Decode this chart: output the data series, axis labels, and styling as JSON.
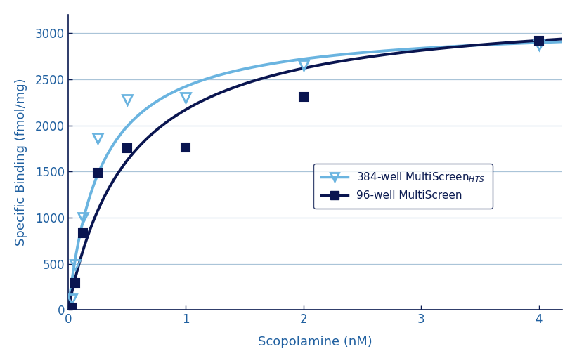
{
  "title": "",
  "xlabel": "Scopolamine (nM)",
  "ylabel": "Specific Binding (fmol/mg)",
  "xlim": [
    0,
    4.2
  ],
  "ylim": [
    0,
    3200
  ],
  "xticks": [
    0,
    1,
    2,
    3,
    4
  ],
  "yticks": [
    0,
    500,
    1000,
    1500,
    2000,
    2500,
    3000
  ],
  "bg_color": "#ffffff",
  "plot_bg_color": "#ffffff",
  "series_384": {
    "label": "384-well MultiScreen$_{HTS}$",
    "color": "#6ab4e0",
    "x_data": [
      0.031,
      0.063,
      0.125,
      0.25,
      0.5,
      1.0,
      2.0,
      4.0
    ],
    "y_data": [
      115,
      490,
      1000,
      1860,
      2280,
      2300,
      2650,
      2870
    ]
  },
  "series_96": {
    "label": "96-well MultiScreen",
    "color": "#0a1550",
    "x_data": [
      0.031,
      0.063,
      0.125,
      0.25,
      0.5,
      1.0,
      2.0,
      4.0
    ],
    "y_data": [
      25,
      290,
      830,
      1490,
      1750,
      1760,
      2310,
      2920
    ]
  },
  "Bmax_384": 3100,
  "Kd_384": 0.28,
  "Bmax_96": 3300,
  "Kd_96": 0.52,
  "grid_color": "#aac4d8",
  "axis_color": "#0a1a50",
  "label_color": "#2060a0",
  "tick_fontsize": 12,
  "label_fontsize": 13,
  "legend_fontsize": 11
}
